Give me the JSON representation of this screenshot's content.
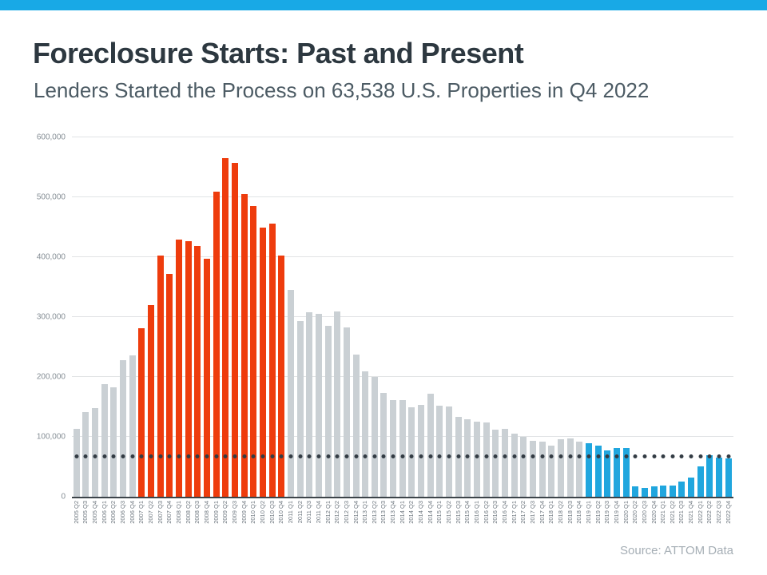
{
  "header": {
    "title": "Foreclosure Starts: Past and Present",
    "subtitle": "Lenders Started the Process on 63,538 U.S. Properties in Q4 2022",
    "accent_bar_color": "#18a9e6"
  },
  "footer": {
    "source_label": "Source: ATTOM Data"
  },
  "chart_data": {
    "type": "bar",
    "title": "Foreclosure Starts: Past and Present",
    "xlabel": "",
    "ylabel": "",
    "ylim": [
      0,
      600000
    ],
    "grid": true,
    "legend": "none",
    "y_ticks": [
      {
        "label": "600,000",
        "value": 600000
      },
      {
        "label": "500,000",
        "value": 500000
      },
      {
        "label": "400,000",
        "value": 400000
      },
      {
        "label": "300,000",
        "value": 300000
      },
      {
        "label": "200,000",
        "value": 200000
      },
      {
        "label": "100,000",
        "value": 100000
      },
      {
        "label": "0",
        "value": 0
      }
    ],
    "categories": [
      "2005 Q2",
      "2005 Q3",
      "2005 Q4",
      "2006 Q1",
      "2006 Q2",
      "2006 Q3",
      "2006 Q4",
      "2007 Q1",
      "2007 Q2",
      "2007 Q3",
      "2007 Q4",
      "2008 Q1",
      "2008 Q2",
      "2008 Q3",
      "2008 Q4",
      "2009 Q1",
      "2009 Q2",
      "2009 Q3",
      "2009 Q4",
      "2010 Q1",
      "2010 Q2",
      "2010 Q3",
      "2010 Q4",
      "2011 Q1",
      "2011 Q2",
      "2011 Q3",
      "2011 Q4",
      "2012 Q1",
      "2012 Q2",
      "2012 Q3",
      "2012 Q4",
      "2013 Q1",
      "2013 Q2",
      "2013 Q3",
      "2013 Q4",
      "2014 Q1",
      "2014 Q2",
      "2014 Q3",
      "2014 Q4",
      "2015 Q1",
      "2015 Q2",
      "2015 Q3",
      "2015 Q4",
      "2016 Q1",
      "2016 Q2",
      "2016 Q3",
      "2016 Q4",
      "2017 Q1",
      "2017 Q2",
      "2017 Q3",
      "2017 Q4",
      "2018 Q1",
      "2018 Q2",
      "2018 Q3",
      "2018 Q4",
      "2019 Q1",
      "2019 Q2",
      "2019 Q3",
      "2019 Q4",
      "2020 Q1",
      "2020 Q2",
      "2020 Q3",
      "2020 Q4",
      "2021 Q1",
      "2021 Q2",
      "2021 Q3",
      "2021 Q4",
      "2022 Q1",
      "2022 Q2",
      "2022 Q3",
      "2022 Q4"
    ],
    "values": [
      113000,
      141000,
      148000,
      188000,
      183000,
      228000,
      236000,
      282000,
      320000,
      403000,
      372000,
      430000,
      427000,
      419000,
      397000,
      509000,
      565000,
      557000,
      505000,
      486000,
      450000,
      456000,
      403000,
      345000,
      293000,
      308000,
      305000,
      286000,
      310000,
      283000,
      238000,
      209000,
      200000,
      173000,
      162000,
      162000,
      150000,
      154000,
      172000,
      152000,
      151000,
      133000,
      130000,
      126000,
      124000,
      112000,
      113000,
      105000,
      100000,
      93000,
      92000,
      86000,
      96000,
      97000,
      92000,
      90000,
      85000,
      78000,
      81000,
      82000,
      17000,
      15000,
      17000,
      19000,
      19000,
      25000,
      32000,
      51000,
      69000,
      66000,
      63538
    ],
    "colors": {
      "gray": "#cad0d4",
      "red": "#ee3c0d",
      "blue": "#20a6de"
    },
    "segments": [
      {
        "start": 0,
        "end": 6,
        "color_key": "gray"
      },
      {
        "start": 7,
        "end": 22,
        "color_key": "red"
      },
      {
        "start": 23,
        "end": 54,
        "color_key": "gray"
      },
      {
        "start": 55,
        "end": 70,
        "color_key": "blue"
      }
    ],
    "reference_line": {
      "style": "dotted",
      "value": 63538,
      "dot_color": "#333c44"
    }
  }
}
